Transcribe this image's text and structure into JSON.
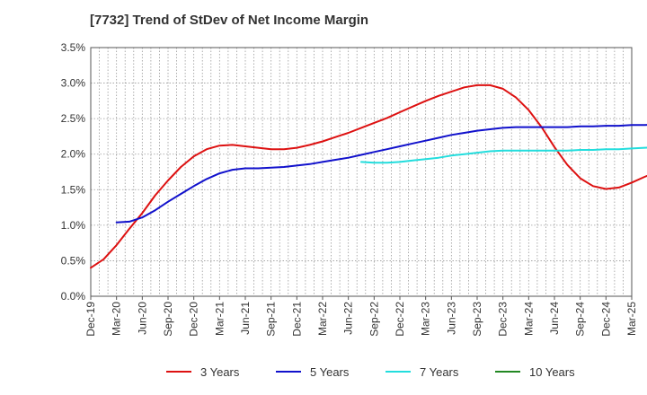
{
  "chart_data": {
    "type": "line",
    "title": "[7732]  Trend of StDev of Net Income Margin",
    "xlabel": "",
    "ylabel": "",
    "x_ticks": [
      "Dec-19",
      "Mar-20",
      "Jun-20",
      "Sep-20",
      "Dec-20",
      "Mar-21",
      "Jun-21",
      "Sep-21",
      "Dec-21",
      "Mar-22",
      "Jun-22",
      "Sep-22",
      "Dec-22",
      "Mar-23",
      "Jun-23",
      "Sep-23",
      "Dec-23",
      "Mar-24",
      "Jun-24",
      "Sep-24",
      "Dec-24",
      "Mar-25"
    ],
    "y_ticks": [
      "0.0%",
      "0.5%",
      "1.0%",
      "1.5%",
      "2.0%",
      "2.5%",
      "3.0%",
      "3.5%"
    ],
    "ylim": [
      0,
      3.5
    ],
    "grid": true,
    "legend_position": "bottom",
    "series": [
      {
        "name": "3 Years",
        "color": "#dd1111",
        "values": [
          0.4,
          0.52,
          0.72,
          0.95,
          1.17,
          1.42,
          1.63,
          1.82,
          1.97,
          2.07,
          2.12,
          2.13,
          2.11,
          2.09,
          2.07,
          2.07,
          2.09,
          2.13,
          2.18,
          2.24,
          2.3,
          2.37,
          2.44,
          2.51,
          2.59,
          2.67,
          2.75,
          2.82,
          2.88,
          2.94,
          2.97,
          2.97,
          2.92,
          2.8,
          2.62,
          2.38,
          2.1,
          1.85,
          1.66,
          1.55,
          1.51,
          1.53,
          1.6,
          1.68,
          1.75,
          1.81,
          1.87,
          1.95
        ]
      },
      {
        "name": "5 Years",
        "color": "#1111cc",
        "values": [
          null,
          null,
          1.04,
          1.05,
          1.11,
          1.21,
          1.33,
          1.44,
          1.55,
          1.65,
          1.73,
          1.78,
          1.8,
          1.8,
          1.81,
          1.82,
          1.84,
          1.86,
          1.89,
          1.92,
          1.95,
          1.99,
          2.03,
          2.07,
          2.11,
          2.15,
          2.19,
          2.23,
          2.27,
          2.3,
          2.33,
          2.35,
          2.37,
          2.38,
          2.38,
          2.38,
          2.38,
          2.38,
          2.39,
          2.39,
          2.4,
          2.4,
          2.41,
          2.41,
          2.42,
          2.43,
          2.44,
          2.46
        ]
      },
      {
        "name": "7 Years",
        "color": "#22dddd",
        "values": [
          null,
          null,
          null,
          null,
          null,
          null,
          null,
          null,
          null,
          null,
          null,
          null,
          null,
          null,
          null,
          null,
          null,
          null,
          null,
          null,
          null,
          1.89,
          1.88,
          1.88,
          1.89,
          1.91,
          1.93,
          1.95,
          1.98,
          2.0,
          2.02,
          2.04,
          2.05,
          2.05,
          2.05,
          2.05,
          2.05,
          2.05,
          2.06,
          2.06,
          2.07,
          2.07,
          2.08,
          2.09,
          2.1,
          2.1,
          2.11,
          2.13
        ]
      },
      {
        "name": "10 Years",
        "color": "#228822",
        "values": []
      }
    ]
  }
}
